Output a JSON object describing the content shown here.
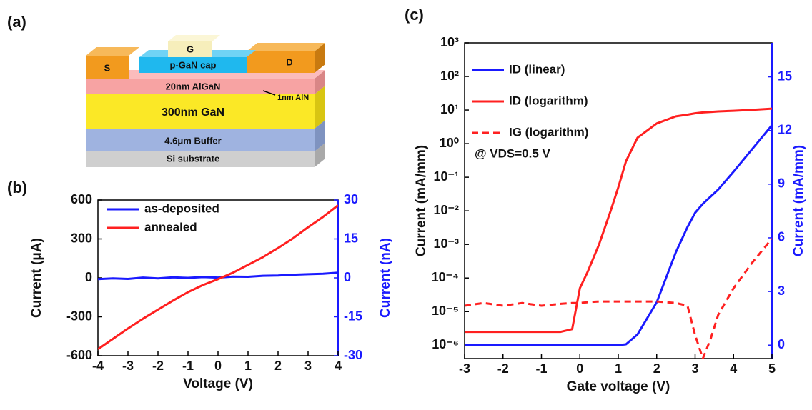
{
  "schematic": {
    "label": "(a)",
    "source": "S",
    "gate": "G",
    "drain": "D",
    "cap": "p-GaN cap",
    "barrier": "20nm AlGaN",
    "interlayer": "1nm AlN",
    "channel": "300nm GaN",
    "buffer": "4.6μm Buffer",
    "substrate": "Si substrate"
  },
  "chart_data": [
    {
      "type": "line",
      "label": "(b)",
      "x_label": "Voltage (V)",
      "y_label": "Current (μA)",
      "y2_label": "Current (nA)",
      "x": [
        -4,
        -3.5,
        -3,
        -2.5,
        -2,
        -1.5,
        -1,
        -0.5,
        0,
        0.5,
        1,
        1.5,
        2,
        2.5,
        3,
        3.5,
        4
      ],
      "series": [
        {
          "name": "as-deposited",
          "color": "#1a1aff",
          "axis": "y2",
          "values": [
            -0.5,
            -0.2,
            -0.4,
            0.1,
            -0.2,
            0.2,
            0.0,
            0.3,
            0.1,
            0.5,
            0.4,
            0.8,
            0.9,
            1.2,
            1.4,
            1.6,
            2.0
          ]
        },
        {
          "name": "annealed",
          "color": "#ff2020",
          "values": [
            -550,
            -470,
            -390,
            -315,
            -245,
            -175,
            -110,
            -55,
            -10,
            40,
            100,
            160,
            230,
            305,
            390,
            470,
            560
          ]
        }
      ],
      "xlim": [
        -4,
        4
      ],
      "xticks": [
        -4,
        -3,
        -2,
        -1,
        0,
        1,
        2,
        3,
        4
      ],
      "ylim": [
        -600,
        600
      ],
      "yticks": [
        -600,
        -300,
        0,
        300,
        600
      ],
      "y2lim": [
        -30,
        30
      ],
      "y2ticks": [
        -30,
        -15,
        0,
        15,
        30
      ],
      "y2color": "#1a1aff"
    },
    {
      "type": "line",
      "label": "(c)",
      "x_label": "Gate voltage (V)",
      "y_label": "Current (mA/mm)",
      "y2_label": "Current (mA/mm)",
      "annotation": "@ VDS=0.5 V",
      "log_y": true,
      "x": [
        -3,
        -2.5,
        -2,
        -1.5,
        -1,
        -0.5,
        -0.2,
        0,
        0.2,
        0.5,
        0.8,
        1,
        1.2,
        1.5,
        2,
        2.5,
        2.8,
        3,
        3.2,
        3.4,
        3.6,
        4,
        4.5,
        5
      ],
      "series": [
        {
          "name": "ID (linear)",
          "color": "#1a1aff",
          "axis": "y2",
          "dash": false,
          "values": [
            0,
            0,
            0,
            0,
            0,
            0,
            0,
            0,
            0,
            0,
            0,
            0,
            0.05,
            0.6,
            2.4,
            5.2,
            6.6,
            7.4,
            7.9,
            8.3,
            8.7,
            9.7,
            11.0,
            12.3
          ]
        },
        {
          "name": "ID (logarithm)",
          "color": "#ff2020",
          "dash": false,
          "values": [
            2.5e-06,
            2.5e-06,
            2.5e-06,
            2.5e-06,
            2.5e-06,
            2.5e-06,
            3e-06,
            5e-05,
            0.00015,
            0.001,
            0.01,
            0.05,
            0.3,
            1.5,
            4,
            6.5,
            7.3,
            8,
            8.5,
            8.8,
            9.1,
            9.5,
            10.2,
            11
          ]
        },
        {
          "name": "IG (logarithm)",
          "color": "#ff2020",
          "dash": true,
          "values": [
            1.5e-05,
            1.8e-05,
            1.5e-05,
            1.8e-05,
            1.5e-05,
            1.7e-05,
            1.8e-05,
            1.8e-05,
            1.9e-05,
            2e-05,
            2e-05,
            2e-05,
            2e-05,
            2e-05,
            2e-05,
            1.8e-05,
            1.5e-05,
            2e-06,
            4e-07,
            1.5e-06,
            8e-06,
            5e-05,
            0.0003,
            0.0015
          ]
        }
      ],
      "xlim": [
        -3,
        5
      ],
      "xticks": [
        -3,
        -2,
        -1,
        0,
        1,
        2,
        3,
        4,
        5
      ],
      "ylim": [
        4e-07,
        1000
      ],
      "yticks": [
        {
          "value": 1e-06,
          "label": "10⁻⁶"
        },
        {
          "value": 1e-05,
          "label": "10⁻⁵"
        },
        {
          "value": 0.0001,
          "label": "10⁻⁴"
        },
        {
          "value": 0.001,
          "label": "10⁻³"
        },
        {
          "value": 0.01,
          "label": "10⁻²"
        },
        {
          "value": 0.1,
          "label": "10⁻¹"
        },
        {
          "value": 1,
          "label": "10⁰"
        },
        {
          "value": 10,
          "label": "10¹"
        },
        {
          "value": 100,
          "label": "10²"
        },
        {
          "value": 1000,
          "label": "10³"
        }
      ],
      "y2lim": [
        -0.75,
        16.9
      ],
      "y2ticks": [
        0,
        3,
        6,
        9,
        12,
        15
      ],
      "y2color": "#1a1aff"
    }
  ]
}
